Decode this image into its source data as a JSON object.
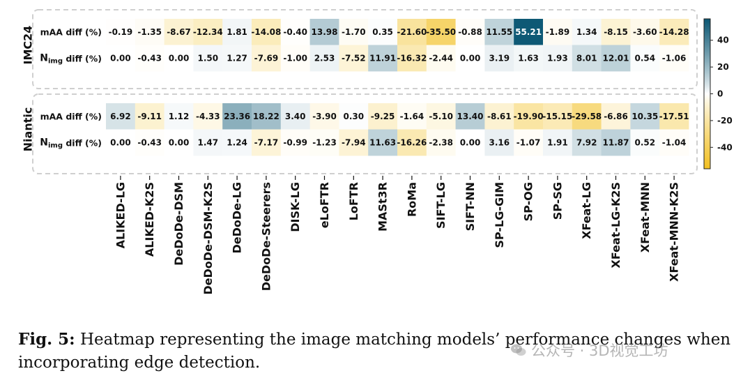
{
  "chart_data": {
    "type": "heatmap",
    "columns": [
      "ALIKED-LG",
      "ALIKED-K2S",
      "DeDoDe-DSM",
      "DeDoDe-DSM-K2S",
      "DeDoDe-LG",
      "DeDoDe-Steerers",
      "DISK-LG",
      "eLoFTR",
      "LoFTR",
      "MASt3R",
      "RoMa",
      "SIFT-LG",
      "SIFT-NN",
      "SP-LG-GIM",
      "SP-OG",
      "SP-SG",
      "XFeat-LG",
      "XFeat-LG-K2S",
      "XFeat-MNN",
      "XFeat-MNN-K2S"
    ],
    "groups": [
      {
        "name": "IMC24",
        "rows": [
          {
            "label": "mAA diff (%)",
            "values": [
              "-0.19",
              "-1.35",
              "-8.67",
              "-12.34",
              "1.81",
              "-14.08",
              "-0.40",
              "13.98",
              "-1.70",
              "0.35",
              "-21.60",
              "-35.50",
              "-0.88",
              "11.55",
              "55.21",
              "-1.89",
              "1.34",
              "-8.15",
              "-3.60",
              "-14.28"
            ]
          },
          {
            "label_main": "N",
            "label_sub": "img",
            "label_rest": " diff (%)",
            "values": [
              "0.00",
              "-0.43",
              "0.00",
              "1.50",
              "1.27",
              "-7.69",
              "-1.00",
              "2.53",
              "-7.52",
              "11.91",
              "-16.32",
              "-2.44",
              "0.00",
              "3.19",
              "1.63",
              "1.93",
              "8.01",
              "12.01",
              "0.54",
              "-1.06"
            ]
          }
        ]
      },
      {
        "name": "Niantic",
        "rows": [
          {
            "label": "mAA diff (%)",
            "values": [
              "6.92",
              "-9.11",
              "1.12",
              "-4.33",
              "23.36",
              "18.22",
              "3.40",
              "-3.90",
              "0.30",
              "-9.25",
              "-1.64",
              "-5.10",
              "13.40",
              "-8.61",
              "-19.90",
              "-15.15",
              "-29.58",
              "-6.86",
              "10.35",
              "-17.51"
            ]
          },
          {
            "label_main": "N",
            "label_sub": "img",
            "label_rest": " diff (%)",
            "values": [
              "0.00",
              "-0.43",
              "0.00",
              "1.47",
              "1.24",
              "-7.17",
              "-0.99",
              "-1.23",
              "-7.94",
              "11.63",
              "-16.26",
              "-2.38",
              "0.00",
              "3.16",
              "-1.07",
              "1.91",
              "7.92",
              "11.87",
              "0.52",
              "-1.04"
            ]
          }
        ]
      }
    ],
    "colorbar": {
      "ticks": [
        "40",
        "20",
        "0",
        "-20",
        "-40"
      ],
      "tick_values": [
        40,
        20,
        0,
        -20,
        -40
      ],
      "range": [
        -56,
        56
      ],
      "positive_color": "#0b5773",
      "negative_color": "#f2c022",
      "neutral_color": "#ffffff"
    }
  },
  "caption": {
    "label": "Fig. 5:",
    "text": " Heatmap representing the image matching models’ performance changes when incorporating edge detection."
  },
  "watermark": {
    "text": "公众号 · 3D视觉工坊"
  }
}
